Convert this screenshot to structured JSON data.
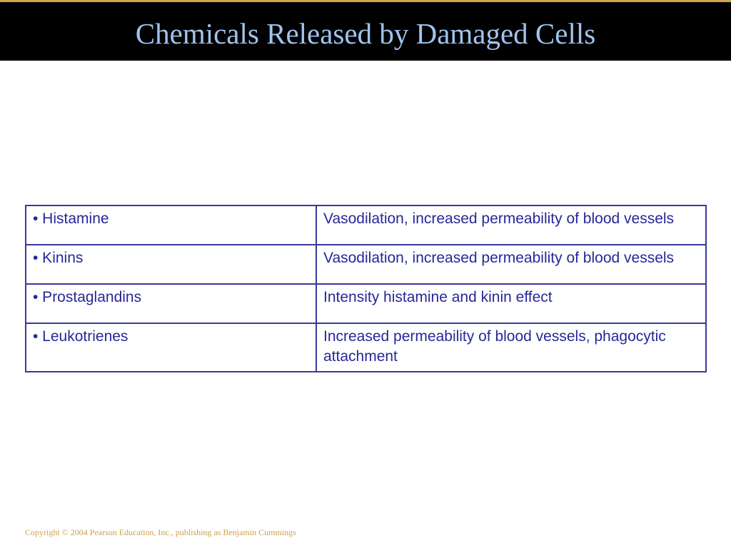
{
  "slide": {
    "title": "Chemicals Released by Damaged Cells",
    "copyright": "Copyright © 2004 Pearson Education, Inc., publishing as Benjamin Cummings"
  },
  "table": {
    "rows": [
      {
        "chemical": "• Histamine",
        "effect": "Vasodilation, increased permeability of blood vessels"
      },
      {
        "chemical": "• Kinins",
        "effect": "Vasodilation, increased permeability of blood vessels"
      },
      {
        "chemical": "• Prostaglandins",
        "effect": "Intensity histamine and kinin effect"
      },
      {
        "chemical": "• Leukotrienes",
        "effect": "Increased permeability of blood vessels, phagocytic attachment"
      }
    ]
  },
  "colors": {
    "title": "#9fc4ee",
    "title_bar": "#000000",
    "table_text": "#27279a",
    "table_border": "#39399a",
    "copyright": "#c8a24a"
  }
}
